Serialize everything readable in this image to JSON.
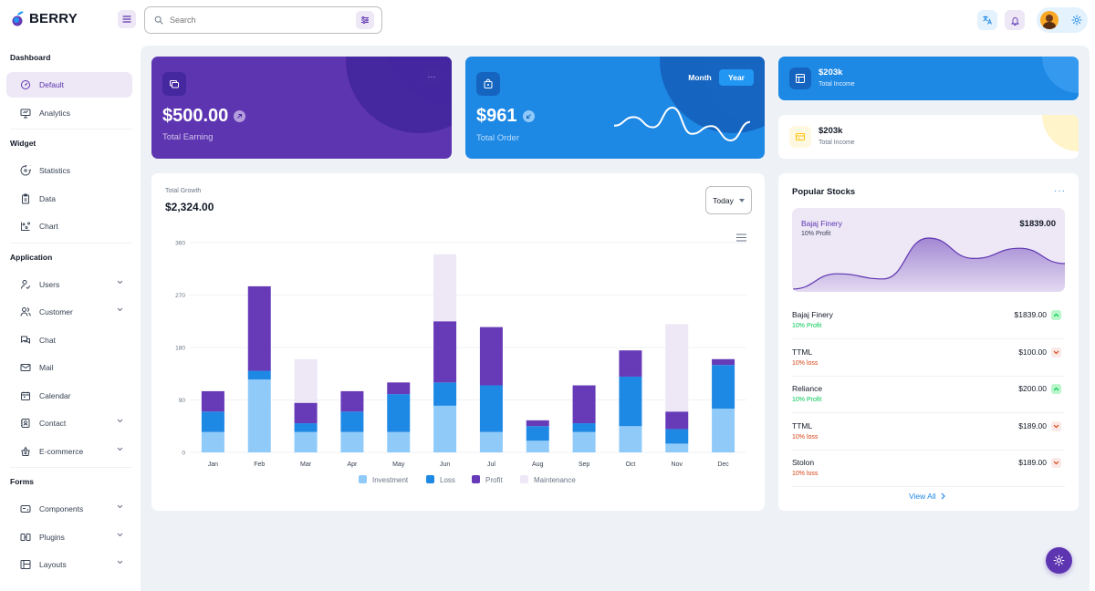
{
  "brand": {
    "name": "BERRY"
  },
  "search": {
    "placeholder": "Search"
  },
  "sidebar": {
    "sections": [
      {
        "title": "Dashboard",
        "items": [
          {
            "label": "Default",
            "icon": "dashboard-icon",
            "active": true,
            "expandable": false
          },
          {
            "label": "Analytics",
            "icon": "device-analytics-icon",
            "active": false,
            "expandable": false
          }
        ]
      },
      {
        "title": "Widget",
        "items": [
          {
            "label": "Statistics",
            "icon": "chart-arcs-icon",
            "active": false,
            "expandable": false
          },
          {
            "label": "Data",
            "icon": "clipboard-list-icon",
            "active": false,
            "expandable": false
          },
          {
            "label": "Chart",
            "icon": "chart-dots-icon",
            "active": false,
            "expandable": false
          }
        ]
      },
      {
        "title": "Application",
        "items": [
          {
            "label": "Users",
            "icon": "user-check-icon",
            "active": false,
            "expandable": true
          },
          {
            "label": "Customer",
            "icon": "users-icon",
            "active": false,
            "expandable": true
          },
          {
            "label": "Chat",
            "icon": "messages-icon",
            "active": false,
            "expandable": false
          },
          {
            "label": "Mail",
            "icon": "mail-icon",
            "active": false,
            "expandable": false
          },
          {
            "label": "Calendar",
            "icon": "calendar-icon",
            "active": false,
            "expandable": false
          },
          {
            "label": "Contact",
            "icon": "contact-icon",
            "active": false,
            "expandable": true
          },
          {
            "label": "E-commerce",
            "icon": "basket-icon",
            "active": false,
            "expandable": true
          }
        ]
      },
      {
        "title": "Forms",
        "items": [
          {
            "label": "Components",
            "icon": "components-icon",
            "active": false,
            "expandable": true
          },
          {
            "label": "Plugins",
            "icon": "plugins-icon",
            "active": false,
            "expandable": true
          },
          {
            "label": "Layouts",
            "icon": "layouts-icon",
            "active": false,
            "expandable": true
          }
        ]
      }
    ]
  },
  "earning": {
    "value": "$500.00",
    "label": "Total Earning"
  },
  "order": {
    "value": "$961",
    "label": "Total Order",
    "toggle_month": "Month",
    "toggle_year": "Year",
    "selected": "Year"
  },
  "income_cards": [
    {
      "value": "$203k",
      "label": "Total Income",
      "style": "blue"
    },
    {
      "value": "$203k",
      "label": "Total Income",
      "style": "white"
    }
  ],
  "growth": {
    "label": "Total Growth",
    "value": "$2,324.00",
    "period": "Today"
  },
  "chart_data": {
    "type": "bar",
    "stacked": true,
    "categories": [
      "Jan",
      "Feb",
      "Mar",
      "Apr",
      "May",
      "Jun",
      "Jul",
      "Aug",
      "Sep",
      "Oct",
      "Nov",
      "Dec"
    ],
    "series": [
      {
        "name": "Investment",
        "color": "#90caf9",
        "values": [
          35,
          125,
          35,
          35,
          35,
          80,
          35,
          20,
          35,
          45,
          15,
          75
        ]
      },
      {
        "name": "Loss",
        "color": "#1e88e5",
        "values": [
          35,
          15,
          15,
          35,
          65,
          40,
          80,
          25,
          15,
          85,
          25,
          75
        ]
      },
      {
        "name": "Profit",
        "color": "#673ab7",
        "values": [
          35,
          145,
          35,
          35,
          20,
          105,
          100,
          10,
          65,
          45,
          30,
          10
        ]
      },
      {
        "name": "Maintenance",
        "color": "#ede7f6",
        "values": [
          0,
          0,
          75,
          0,
          0,
          115,
          0,
          0,
          0,
          0,
          150,
          0
        ]
      }
    ],
    "yticks": [
      0,
      90,
      180,
      270,
      360
    ],
    "ylim": [
      0,
      360
    ],
    "legend_position": "bottom",
    "grid": true
  },
  "order_sparkline": {
    "type": "line",
    "values": [
      45,
      66,
      41,
      89,
      25,
      44,
      9,
      54
    ]
  },
  "stocks": {
    "title": "Popular Stocks",
    "featured": {
      "name": "Bajaj Finery",
      "sub": "10% Profit",
      "value": "$1839.00",
      "series": [
        0,
        15,
        10,
        50,
        30,
        40,
        25
      ]
    },
    "rows": [
      {
        "name": "Bajaj Finery",
        "change": "10% Profit",
        "price": "$1839.00",
        "direction": "up"
      },
      {
        "name": "TTML",
        "change": "10% loss",
        "price": "$100.00",
        "direction": "down"
      },
      {
        "name": "Reliance",
        "change": "10% Profit",
        "price": "$200.00",
        "direction": "up"
      },
      {
        "name": "TTML",
        "change": "10% loss",
        "price": "$189.00",
        "direction": "down"
      },
      {
        "name": "Stolon",
        "change": "10% loss",
        "price": "$189.00",
        "direction": "down"
      }
    ],
    "view_all": "View All"
  },
  "colors": {
    "primary": "#5e35b1",
    "secondary": "#1e88e5",
    "profit": "#00c853",
    "loss": "#d84315",
    "background": "#eef2f6"
  }
}
